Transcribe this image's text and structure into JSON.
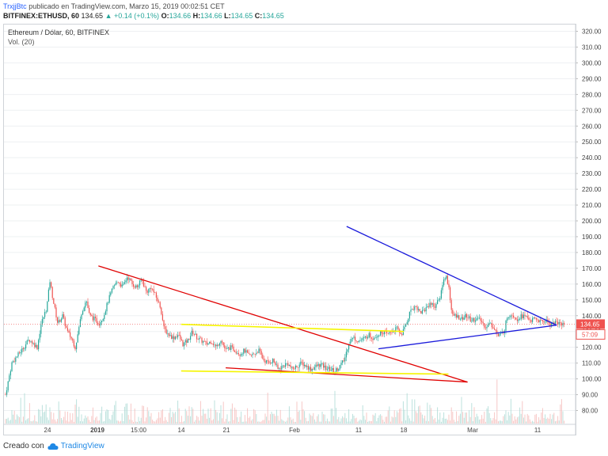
{
  "header": {
    "author": "TrxjjBtc",
    "published": "publicado en TradingView.com, Marzo 15, 2019 00:02:51 CET",
    "symbol": "BITFINEX:ETHUSD, 60",
    "last": "134.65",
    "change": "+0.14 (+0.1%)",
    "o_label": "O:",
    "o_value": "134.66",
    "h_label": "H:",
    "h_value": "134.66",
    "l_label": "L:",
    "l_value": "134.65",
    "c_label": "C:",
    "c_value": "134.65"
  },
  "chart": {
    "title": "Ethereum / Dólar, 60, BITFINEX",
    "volume_label": "Vol. (20)",
    "price_tag": "134.65",
    "time_tag": "57:09",
    "colors": {
      "up": "#26a69a",
      "down": "#ef5350",
      "red_line": "#e00000",
      "blue_line": "#1a1adb",
      "yellow_line": "#f5f500"
    }
  },
  "footer": {
    "created_with": "Creado con",
    "brand": "TradingView"
  },
  "chart_data": {
    "type": "candlestick",
    "instrument": "BITFINEX:ETHUSD",
    "interval": "60",
    "y_ticks": [
      80,
      90,
      100,
      110,
      120,
      130,
      140,
      150,
      160,
      170,
      180,
      190,
      200,
      210,
      220,
      230,
      240,
      250,
      260,
      270,
      280,
      290,
      300,
      310,
      320
    ],
    "ylim": [
      75,
      322
    ],
    "x_ticks": [
      "24",
      "2019",
      "15:00",
      "14",
      "21",
      "Feb",
      "11",
      "18",
      "Mar",
      "11"
    ],
    "last_price": 134.65,
    "price_path": [
      [
        0,
        90
      ],
      [
        8,
        110
      ],
      [
        20,
        118
      ],
      [
        30,
        125
      ],
      [
        40,
        120
      ],
      [
        45,
        135
      ],
      [
        52,
        145
      ],
      [
        56,
        162
      ],
      [
        60,
        150
      ],
      [
        66,
        135
      ],
      [
        72,
        140
      ],
      [
        78,
        130
      ],
      [
        84,
        125
      ],
      [
        88,
        120
      ],
      [
        92,
        130
      ],
      [
        96,
        142
      ],
      [
        102,
        150
      ],
      [
        106,
        140
      ],
      [
        112,
        138
      ],
      [
        118,
        135
      ],
      [
        124,
        140
      ],
      [
        130,
        150
      ],
      [
        136,
        158
      ],
      [
        142,
        162
      ],
      [
        148,
        158
      ],
      [
        154,
        165
      ],
      [
        160,
        160
      ],
      [
        166,
        158
      ],
      [
        172,
        163
      ],
      [
        178,
        155
      ],
      [
        184,
        158
      ],
      [
        190,
        152
      ],
      [
        196,
        145
      ],
      [
        200,
        132
      ],
      [
        206,
        128
      ],
      [
        212,
        126
      ],
      [
        218,
        128
      ],
      [
        224,
        122
      ],
      [
        230,
        124
      ],
      [
        236,
        130
      ],
      [
        242,
        126
      ],
      [
        248,
        124
      ],
      [
        254,
        122
      ],
      [
        260,
        124
      ],
      [
        266,
        120
      ],
      [
        272,
        125
      ],
      [
        278,
        118
      ],
      [
        284,
        120
      ],
      [
        290,
        118
      ],
      [
        296,
        116
      ],
      [
        302,
        118
      ],
      [
        308,
        114
      ],
      [
        314,
        116
      ],
      [
        320,
        118
      ],
      [
        326,
        112
      ],
      [
        332,
        110
      ],
      [
        338,
        112
      ],
      [
        344,
        106
      ],
      [
        350,
        108
      ],
      [
        356,
        110
      ],
      [
        362,
        106
      ],
      [
        368,
        108
      ],
      [
        374,
        110
      ],
      [
        380,
        108
      ],
      [
        386,
        106
      ],
      [
        392,
        108
      ],
      [
        398,
        109
      ],
      [
        404,
        107
      ],
      [
        410,
        106
      ],
      [
        416,
        105
      ],
      [
        422,
        108
      ],
      [
        428,
        112
      ],
      [
        434,
        124
      ],
      [
        440,
        126
      ],
      [
        446,
        124
      ],
      [
        452,
        125
      ],
      [
        458,
        128
      ],
      [
        464,
        126
      ],
      [
        470,
        128
      ],
      [
        476,
        130
      ],
      [
        482,
        128
      ],
      [
        488,
        130
      ],
      [
        494,
        132
      ],
      [
        500,
        128
      ],
      [
        504,
        132
      ],
      [
        508,
        138
      ],
      [
        512,
        144
      ],
      [
        518,
        146
      ],
      [
        524,
        142
      ],
      [
        530,
        144
      ],
      [
        536,
        148
      ],
      [
        542,
        146
      ],
      [
        548,
        150
      ],
      [
        552,
        160
      ],
      [
        556,
        166
      ],
      [
        560,
        158
      ],
      [
        564,
        140
      ],
      [
        570,
        140
      ],
      [
        576,
        138
      ],
      [
        582,
        140
      ],
      [
        588,
        137
      ],
      [
        594,
        138
      ],
      [
        600,
        137
      ],
      [
        606,
        133
      ],
      [
        612,
        135
      ],
      [
        618,
        132
      ],
      [
        622,
        127
      ],
      [
        626,
        128
      ],
      [
        630,
        131
      ],
      [
        634,
        140
      ],
      [
        640,
        141
      ],
      [
        646,
        138
      ],
      [
        652,
        140
      ],
      [
        658,
        139
      ],
      [
        664,
        137
      ],
      [
        670,
        138
      ],
      [
        676,
        136
      ],
      [
        682,
        137
      ],
      [
        688,
        135
      ],
      [
        694,
        136
      ],
      [
        700,
        135
      ],
      [
        706,
        134.65
      ]
    ],
    "drawings": [
      {
        "color": "red",
        "from": [
          "2019-01-01",
          171.5
        ],
        "to": [
          "2019-02-28",
          98
        ]
      },
      {
        "color": "red",
        "from": [
          "2019-01-21",
          107
        ],
        "to": [
          "2019-02-28",
          98
        ]
      },
      {
        "color": "blue",
        "from": [
          "2019-02-09",
          196.5
        ],
        "to": [
          "2019-03-14",
          134
        ]
      },
      {
        "color": "blue",
        "from": [
          "2019-02-14",
          119
        ],
        "to": [
          "2019-03-14",
          134
        ]
      },
      {
        "color": "yellow",
        "from": [
          "2019-01-14",
          134.5
        ],
        "to": [
          "2019-02-18",
          130
        ]
      },
      {
        "color": "yellow",
        "from": [
          "2019-01-14",
          105
        ],
        "to": [
          "2019-02-25",
          103
        ]
      }
    ]
  }
}
